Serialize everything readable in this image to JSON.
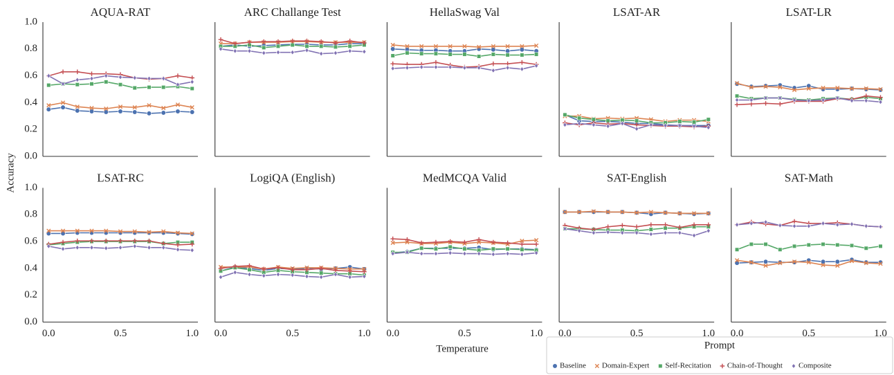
{
  "ylabel": "Accuracy",
  "xlabel": "Temperature",
  "legend": {
    "title": "Prompt",
    "series": [
      {
        "name": "Baseline",
        "color": "#4c72b0",
        "marker": "circle"
      },
      {
        "name": "Domain-Expert",
        "color": "#dd8452",
        "marker": "x"
      },
      {
        "name": "Self-Recitation",
        "color": "#55a868",
        "marker": "square"
      },
      {
        "name": "Chain-of-Thought",
        "color": "#c44e52",
        "marker": "plus"
      },
      {
        "name": "Composite",
        "color": "#8172b3",
        "marker": "diamond"
      }
    ]
  },
  "chart_data": [
    {
      "type": "line",
      "title": "AQUA-RAT",
      "x": [
        0,
        0.1,
        0.2,
        0.3,
        0.4,
        0.5,
        0.6,
        0.7,
        0.8,
        0.9,
        1.0
      ],
      "xlim": [
        -0.04,
        1.04
      ],
      "ylim": [
        0,
        1
      ],
      "yticks": [
        {
          "value": 0,
          "label": "0.0"
        },
        0.2,
        0.4,
        0.6,
        0.8,
        {
          "value": 1,
          "label": "1.0"
        }
      ],
      "series": [
        {
          "values": [
            0.35,
            0.365,
            0.34,
            0.335,
            0.33,
            0.335,
            0.33,
            0.32,
            0.325,
            0.335,
            0.33
          ]
        },
        {
          "values": [
            0.38,
            0.4,
            0.37,
            0.36,
            0.355,
            0.37,
            0.365,
            0.38,
            0.36,
            0.385,
            0.365
          ]
        },
        {
          "values": [
            0.53,
            0.54,
            0.535,
            0.54,
            0.555,
            0.535,
            0.51,
            0.515,
            0.515,
            0.52,
            0.505
          ]
        },
        {
          "values": [
            0.6,
            0.63,
            0.63,
            0.615,
            0.615,
            0.61,
            0.585,
            0.575,
            0.58,
            0.6,
            0.585
          ]
        },
        {
          "values": [
            0.6,
            0.54,
            0.57,
            0.58,
            0.6,
            0.59,
            0.585,
            0.58,
            0.58,
            0.535,
            0.555
          ]
        }
      ]
    },
    {
      "type": "line",
      "title": "ARC Challange Test",
      "x": [
        0,
        0.1,
        0.2,
        0.3,
        0.4,
        0.5,
        0.6,
        0.7,
        0.8,
        0.9,
        1.0
      ],
      "xlim": [
        -0.04,
        1.04
      ],
      "ylim": [
        0,
        1
      ],
      "series": [
        {
          "values": [
            0.82,
            0.83,
            0.82,
            0.825,
            0.83,
            0.835,
            0.835,
            0.83,
            0.83,
            0.84,
            0.84
          ]
        },
        {
          "values": [
            0.84,
            0.84,
            0.85,
            0.85,
            0.85,
            0.855,
            0.855,
            0.85,
            0.85,
            0.85,
            0.85
          ]
        },
        {
          "values": [
            0.82,
            0.82,
            0.83,
            0.81,
            0.82,
            0.83,
            0.82,
            0.82,
            0.815,
            0.82,
            0.83
          ]
        },
        {
          "values": [
            0.87,
            0.84,
            0.85,
            0.855,
            0.855,
            0.86,
            0.86,
            0.855,
            0.845,
            0.86,
            0.845
          ]
        },
        {
          "values": [
            0.8,
            0.785,
            0.785,
            0.77,
            0.775,
            0.775,
            0.79,
            0.765,
            0.77,
            0.785,
            0.78
          ]
        }
      ]
    },
    {
      "type": "line",
      "title": "HellaSwag Val",
      "x": [
        0,
        0.1,
        0.2,
        0.3,
        0.4,
        0.5,
        0.6,
        0.7,
        0.8,
        0.9,
        1.0
      ],
      "xlim": [
        -0.04,
        1.04
      ],
      "ylim": [
        0,
        1
      ],
      "series": [
        {
          "values": [
            0.8,
            0.795,
            0.79,
            0.79,
            0.785,
            0.785,
            0.8,
            0.795,
            0.785,
            0.795,
            0.785
          ]
        },
        {
          "values": [
            0.83,
            0.82,
            0.82,
            0.82,
            0.82,
            0.82,
            0.815,
            0.82,
            0.82,
            0.82,
            0.825
          ]
        },
        {
          "values": [
            0.75,
            0.77,
            0.765,
            0.765,
            0.76,
            0.76,
            0.745,
            0.76,
            0.755,
            0.755,
            0.76
          ]
        },
        {
          "values": [
            0.69,
            0.685,
            0.685,
            0.7,
            0.68,
            0.665,
            0.67,
            0.69,
            0.69,
            0.7,
            0.685
          ]
        },
        {
          "values": [
            0.655,
            0.66,
            0.665,
            0.665,
            0.665,
            0.66,
            0.66,
            0.64,
            0.66,
            0.65,
            0.675
          ]
        }
      ]
    },
    {
      "type": "line",
      "title": "LSAT-AR",
      "x": [
        0,
        0.1,
        0.2,
        0.3,
        0.4,
        0.5,
        0.6,
        0.7,
        0.8,
        0.9,
        1.0
      ],
      "xlim": [
        -0.04,
        1.04
      ],
      "ylim": [
        0,
        1
      ],
      "series": [
        {
          "values": [
            0.31,
            0.265,
            0.26,
            0.26,
            0.255,
            0.245,
            0.245,
            0.235,
            0.23,
            0.23,
            0.23
          ]
        },
        {
          "values": [
            0.3,
            0.3,
            0.28,
            0.285,
            0.28,
            0.285,
            0.275,
            0.26,
            0.27,
            0.27,
            0.26
          ]
        },
        {
          "values": [
            0.31,
            0.285,
            0.275,
            0.265,
            0.27,
            0.265,
            0.25,
            0.25,
            0.26,
            0.255,
            0.275
          ]
        },
        {
          "values": [
            0.25,
            0.235,
            0.25,
            0.24,
            0.245,
            0.235,
            0.23,
            0.225,
            0.225,
            0.22,
            0.225
          ]
        },
        {
          "values": [
            0.235,
            0.245,
            0.235,
            0.225,
            0.245,
            0.205,
            0.235,
            0.23,
            0.23,
            0.225,
            0.215
          ]
        }
      ]
    },
    {
      "type": "line",
      "title": "LSAT-LR",
      "x": [
        0,
        0.1,
        0.2,
        0.3,
        0.4,
        0.5,
        0.6,
        0.7,
        0.8,
        0.9,
        1.0
      ],
      "xlim": [
        -0.04,
        1.04
      ],
      "ylim": [
        0,
        1
      ],
      "series": [
        {
          "values": [
            0.54,
            0.52,
            0.525,
            0.53,
            0.51,
            0.525,
            0.5,
            0.5,
            0.505,
            0.5,
            0.495
          ]
        },
        {
          "values": [
            0.545,
            0.515,
            0.52,
            0.515,
            0.495,
            0.505,
            0.51,
            0.51,
            0.505,
            0.505,
            0.5
          ]
        },
        {
          "values": [
            0.45,
            0.43,
            0.435,
            0.435,
            0.425,
            0.42,
            0.43,
            0.435,
            0.425,
            0.44,
            0.43
          ]
        },
        {
          "values": [
            0.385,
            0.39,
            0.395,
            0.39,
            0.41,
            0.41,
            0.41,
            0.43,
            0.425,
            0.45,
            0.44
          ]
        },
        {
          "values": [
            0.42,
            0.42,
            0.435,
            0.435,
            0.42,
            0.415,
            0.42,
            0.435,
            0.415,
            0.415,
            0.405
          ]
        }
      ]
    },
    {
      "type": "line",
      "title": "LSAT-RC",
      "x": [
        0,
        0.1,
        0.2,
        0.3,
        0.4,
        0.5,
        0.6,
        0.7,
        0.8,
        0.9,
        1.0
      ],
      "xlim": [
        -0.04,
        1.04
      ],
      "ylim": [
        0,
        1
      ],
      "yticks": [
        {
          "value": 0,
          "label": "0.0"
        },
        0.2,
        0.4,
        0.6,
        0.8,
        {
          "value": 1,
          "label": "1.0"
        }
      ],
      "xticks": [
        {
          "value": 0,
          "label": "0.0"
        },
        0.5,
        {
          "value": 1,
          "label": "1.0"
        }
      ],
      "series": [
        {
          "values": [
            0.66,
            0.66,
            0.665,
            0.665,
            0.665,
            0.665,
            0.665,
            0.665,
            0.665,
            0.66,
            0.655
          ]
        },
        {
          "values": [
            0.68,
            0.68,
            0.68,
            0.68,
            0.68,
            0.675,
            0.675,
            0.67,
            0.675,
            0.665,
            0.66
          ]
        },
        {
          "values": [
            0.575,
            0.585,
            0.595,
            0.6,
            0.6,
            0.6,
            0.6,
            0.6,
            0.585,
            0.595,
            0.595
          ]
        },
        {
          "values": [
            0.58,
            0.595,
            0.605,
            0.605,
            0.605,
            0.605,
            0.605,
            0.605,
            0.585,
            0.575,
            0.58
          ]
        },
        {
          "values": [
            0.565,
            0.545,
            0.555,
            0.555,
            0.55,
            0.555,
            0.565,
            0.555,
            0.555,
            0.54,
            0.535
          ]
        }
      ]
    },
    {
      "type": "line",
      "title": "LogiQA (English)",
      "x": [
        0,
        0.1,
        0.2,
        0.3,
        0.4,
        0.5,
        0.6,
        0.7,
        0.8,
        0.9,
        1.0
      ],
      "xlim": [
        -0.04,
        1.04
      ],
      "ylim": [
        0,
        1
      ],
      "xticks": [
        {
          "value": 0,
          "label": "0.0"
        },
        0.5,
        {
          "value": 1,
          "label": "1.0"
        }
      ],
      "series": [
        {
          "values": [
            0.38,
            0.41,
            0.4,
            0.385,
            0.4,
            0.395,
            0.4,
            0.395,
            0.4,
            0.41,
            0.395
          ]
        },
        {
          "values": [
            0.41,
            0.41,
            0.41,
            0.395,
            0.41,
            0.4,
            0.405,
            0.405,
            0.4,
            0.395,
            0.395
          ]
        },
        {
          "values": [
            0.38,
            0.405,
            0.39,
            0.37,
            0.385,
            0.375,
            0.37,
            0.365,
            0.36,
            0.36,
            0.35
          ]
        },
        {
          "values": [
            0.4,
            0.415,
            0.42,
            0.395,
            0.405,
            0.39,
            0.39,
            0.4,
            0.385,
            0.38,
            0.375
          ]
        },
        {
          "values": [
            0.335,
            0.37,
            0.355,
            0.345,
            0.355,
            0.35,
            0.34,
            0.335,
            0.355,
            0.335,
            0.34
          ]
        }
      ]
    },
    {
      "type": "line",
      "title": "MedMCQA Valid",
      "x": [
        0,
        0.1,
        0.2,
        0.3,
        0.4,
        0.5,
        0.6,
        0.7,
        0.8,
        0.9,
        1.0
      ],
      "xlim": [
        -0.04,
        1.04
      ],
      "ylim": [
        0,
        1
      ],
      "xticks": [
        {
          "value": 0,
          "label": "0.0"
        },
        0.5,
        {
          "value": 1,
          "label": "1.0"
        }
      ],
      "series": [
        {
          "values": [
            0.515,
            0.525,
            0.55,
            0.55,
            0.55,
            0.55,
            0.555,
            0.54,
            0.545,
            0.545,
            0.54
          ]
        },
        {
          "values": [
            0.59,
            0.595,
            0.585,
            0.585,
            0.595,
            0.585,
            0.595,
            0.59,
            0.58,
            0.605,
            0.61
          ]
        },
        {
          "values": [
            0.52,
            0.52,
            0.55,
            0.545,
            0.56,
            0.545,
            0.535,
            0.545,
            0.545,
            0.54,
            0.535
          ]
        },
        {
          "values": [
            0.62,
            0.615,
            0.59,
            0.595,
            0.6,
            0.595,
            0.615,
            0.595,
            0.59,
            0.58,
            0.58
          ]
        },
        {
          "values": [
            0.51,
            0.52,
            0.51,
            0.51,
            0.515,
            0.51,
            0.51,
            0.505,
            0.51,
            0.505,
            0.515
          ]
        }
      ]
    },
    {
      "type": "line",
      "title": "SAT-English",
      "x": [
        0,
        0.1,
        0.2,
        0.3,
        0.4,
        0.5,
        0.6,
        0.7,
        0.8,
        0.9,
        1.0
      ],
      "xlim": [
        -0.04,
        1.04
      ],
      "ylim": [
        0,
        1
      ],
      "xticks": [
        {
          "value": 0,
          "label": "0.0"
        },
        0.5,
        {
          "value": 1,
          "label": "1.0"
        }
      ],
      "series": [
        {
          "values": [
            0.82,
            0.82,
            0.82,
            0.82,
            0.82,
            0.815,
            0.805,
            0.815,
            0.81,
            0.805,
            0.81
          ]
        },
        {
          "values": [
            0.82,
            0.82,
            0.825,
            0.82,
            0.82,
            0.815,
            0.82,
            0.815,
            0.81,
            0.81,
            0.81
          ]
        },
        {
          "values": [
            0.695,
            0.695,
            0.69,
            0.685,
            0.685,
            0.68,
            0.69,
            0.7,
            0.7,
            0.71,
            0.71
          ]
        },
        {
          "values": [
            0.72,
            0.7,
            0.69,
            0.71,
            0.72,
            0.71,
            0.725,
            0.725,
            0.705,
            0.725,
            0.725
          ]
        },
        {
          "values": [
            0.695,
            0.68,
            0.665,
            0.67,
            0.665,
            0.665,
            0.655,
            0.665,
            0.665,
            0.645,
            0.68
          ]
        }
      ]
    },
    {
      "type": "line",
      "title": "SAT-Math",
      "x": [
        0,
        0.1,
        0.2,
        0.3,
        0.4,
        0.5,
        0.6,
        0.7,
        0.8,
        0.9,
        1.0
      ],
      "xlim": [
        -0.04,
        1.04
      ],
      "ylim": [
        0,
        1
      ],
      "xticks": [
        {
          "value": 0,
          "label": "0.0"
        },
        0.5,
        {
          "value": 1,
          "label": "1.0"
        }
      ],
      "series": [
        {
          "values": [
            0.44,
            0.445,
            0.45,
            0.445,
            0.445,
            0.46,
            0.45,
            0.45,
            0.465,
            0.445,
            0.445
          ]
        },
        {
          "values": [
            0.46,
            0.445,
            0.42,
            0.44,
            0.45,
            0.445,
            0.425,
            0.42,
            0.455,
            0.44,
            0.435
          ]
        },
        {
          "values": [
            0.54,
            0.58,
            0.58,
            0.54,
            0.565,
            0.575,
            0.58,
            0.575,
            0.57,
            0.55,
            0.565
          ]
        },
        {
          "values": [
            0.725,
            0.745,
            0.73,
            0.72,
            0.75,
            0.735,
            0.735,
            0.74,
            0.73,
            0.715,
            0.71
          ]
        },
        {
          "values": [
            0.725,
            0.735,
            0.745,
            0.72,
            0.715,
            0.715,
            0.735,
            0.725,
            0.73,
            0.715,
            0.71
          ]
        }
      ]
    }
  ]
}
